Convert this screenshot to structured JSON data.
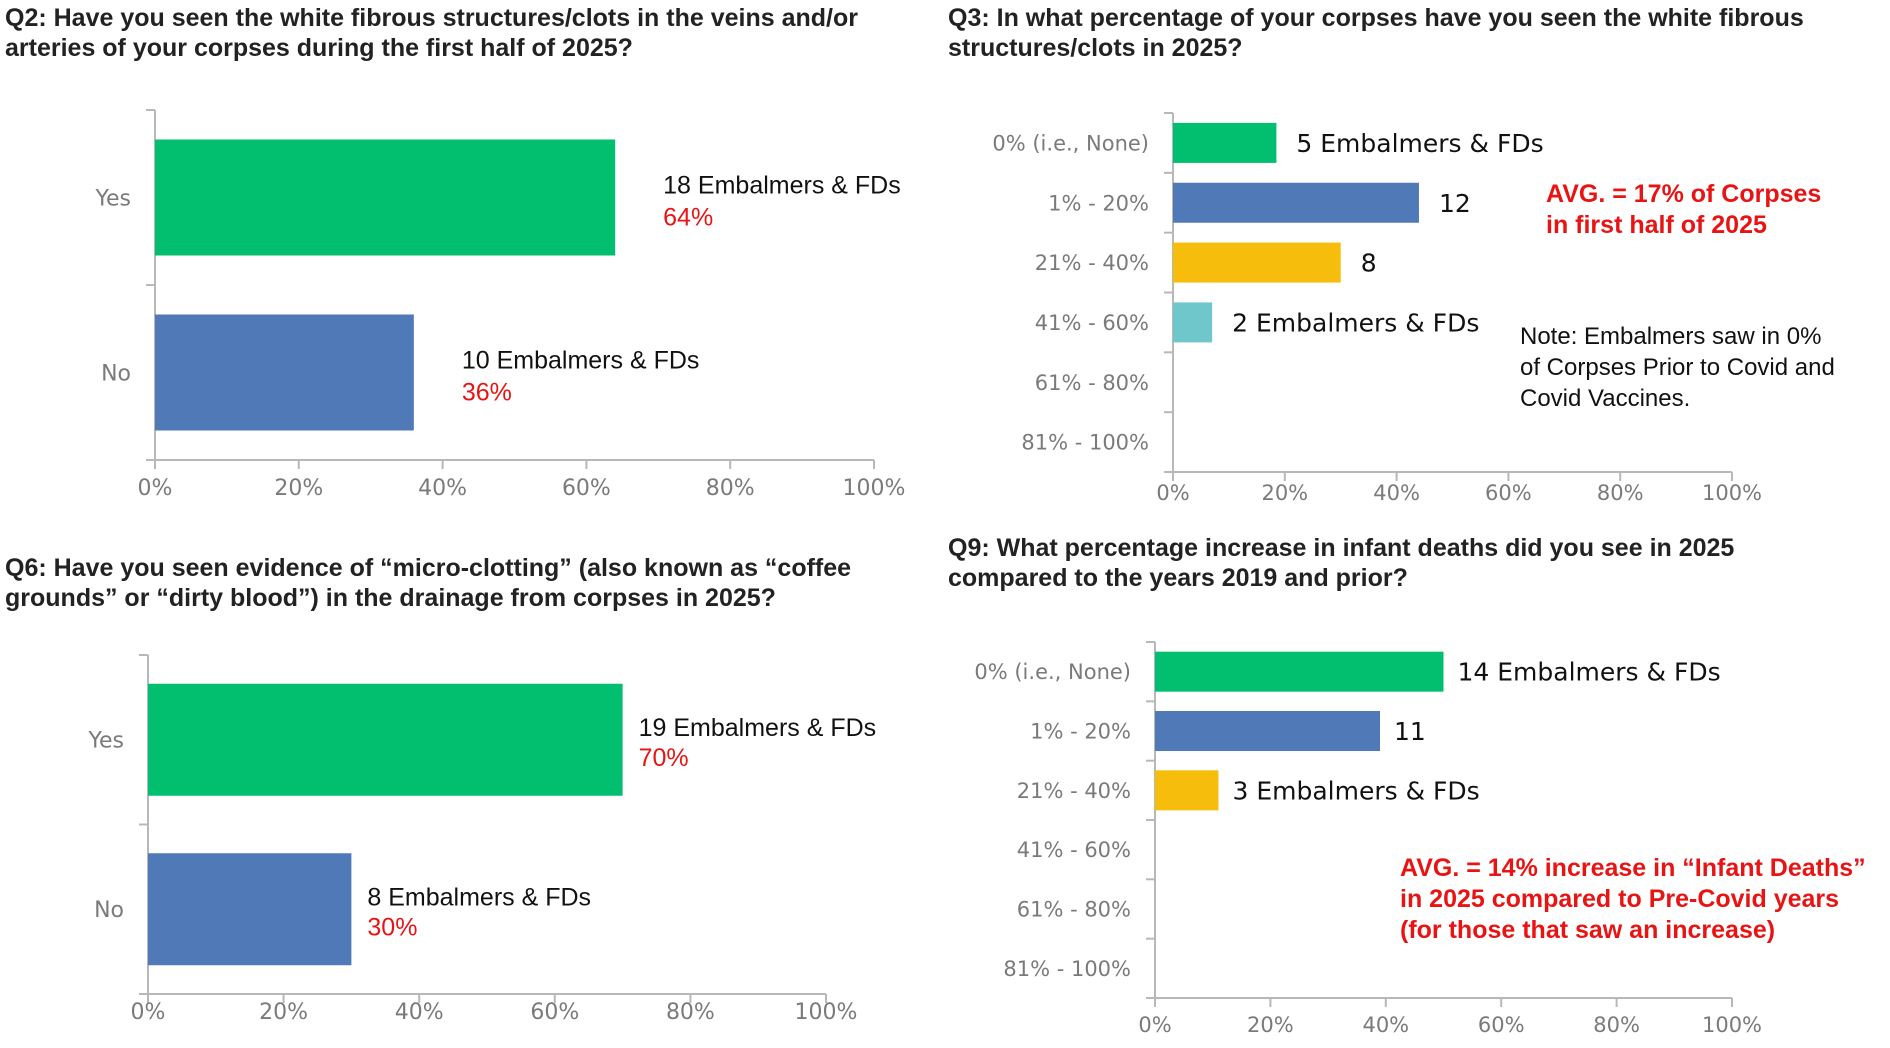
{
  "colors": {
    "green": "#02bf70",
    "blue": "#4f7ab7",
    "yellow": "#f7bd0c",
    "teal": "#6fc7cc",
    "red_text": "#e81414",
    "axis": "#b8b8b8",
    "tick_text": "#7a7a7a"
  },
  "panels": {
    "q2": {
      "title": "Q2: Have you seen the white fibrous structures/clots in the veins and/or\narteries of your corpses during the first half of 2025?"
    },
    "q3": {
      "title": "Q3: In what percentage of your corpses have you seen the white fibrous\nstructures/clots in 2025?"
    },
    "q6": {
      "title": "Q6: Have you seen evidence of “micro-clotting” (also known as “coffee\ngrounds” or “dirty blood”) in the drainage from corpses in 2025?"
    },
    "q9": {
      "title": "Q9: What percentage increase in infant deaths did you see in 2025\ncompared to the years 2019 and prior?"
    }
  },
  "annotations": {
    "q3_avg": "AVG. = 17% of Corpses\n      in first half of 2025",
    "q3_note": "Note:  Embalmers saw in 0%\nof Corpses Prior to Covid and\nCovid Vaccines.",
    "q9_avg": "AVG. = 14% increase in “Infant Deaths”\nin 2025 compared to Pre-Covid years\n(for those that saw an increase)"
  },
  "chart_data": [
    {
      "id": "q2",
      "type": "bar",
      "orientation": "horizontal",
      "categories": [
        "Yes",
        "No"
      ],
      "values": [
        64,
        36
      ],
      "colors": [
        "#02bf70",
        "#4f7ab7"
      ],
      "labels": [
        "18 Embalmers & FDs",
        "10 Embalmers & FDs"
      ],
      "sublabels": [
        "64%",
        "36%"
      ],
      "xlim": [
        0,
        100
      ],
      "xticks": [
        "0%",
        "20%",
        "40%",
        "60%",
        "80%",
        "100%"
      ],
      "grid": false
    },
    {
      "id": "q3",
      "type": "bar",
      "orientation": "horizontal",
      "categories": [
        "0% (i.e., None)",
        "1% - 20%",
        "21% - 40%",
        "41% - 60%",
        "61% - 80%",
        "81% - 100%"
      ],
      "values": [
        18.5,
        44,
        30,
        7,
        0,
        0
      ],
      "colors": [
        "#02bf70",
        "#4f7ab7",
        "#f7bd0c",
        "#6fc7cc",
        "#6fc7cc",
        "#6fc7cc"
      ],
      "labels": [
        "5 Embalmers & FDs",
        "12",
        "8",
        "2 Embalmers & FDs",
        "",
        ""
      ],
      "sublabels": [
        "",
        "",
        "",
        "",
        "",
        ""
      ],
      "xlim": [
        0,
        100
      ],
      "xticks": [
        "0%",
        "20%",
        "40%",
        "60%",
        "80%",
        "100%"
      ],
      "grid": false
    },
    {
      "id": "q6",
      "type": "bar",
      "orientation": "horizontal",
      "categories": [
        "Yes",
        "No"
      ],
      "values": [
        70,
        30
      ],
      "colors": [
        "#02bf70",
        "#4f7ab7"
      ],
      "labels": [
        "19 Embalmers & FDs",
        "8 Embalmers & FDs"
      ],
      "sublabels": [
        "70%",
        "30%"
      ],
      "xlim": [
        0,
        100
      ],
      "xticks": [
        "0%",
        "20%",
        "40%",
        "60%",
        "80%",
        "100%"
      ],
      "grid": false
    },
    {
      "id": "q9",
      "type": "bar",
      "orientation": "horizontal",
      "categories": [
        "0% (i.e., None)",
        "1% - 20%",
        "21% - 40%",
        "41% - 60%",
        "61% - 80%",
        "81% - 100%"
      ],
      "values": [
        50,
        39,
        11,
        0,
        0,
        0
      ],
      "colors": [
        "#02bf70",
        "#4f7ab7",
        "#f7bd0c",
        "#6fc7cc",
        "#6fc7cc",
        "#6fc7cc"
      ],
      "labels": [
        "14 Embalmers & FDs",
        "11",
        "3 Embalmers & FDs",
        "",
        "",
        ""
      ],
      "sublabels": [
        "",
        "",
        "",
        "",
        "",
        ""
      ],
      "xlim": [
        0,
        100
      ],
      "xticks": [
        "0%",
        "20%",
        "40%",
        "60%",
        "80%",
        "100%"
      ],
      "grid": false
    }
  ]
}
